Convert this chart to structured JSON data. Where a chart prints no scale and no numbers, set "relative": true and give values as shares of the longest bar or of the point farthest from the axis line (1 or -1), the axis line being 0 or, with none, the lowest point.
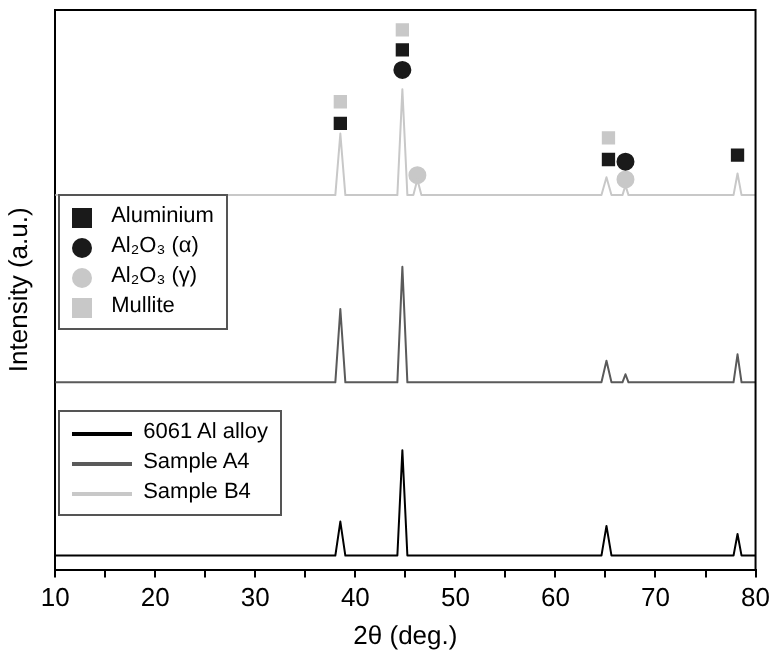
{
  "chart_data": {
    "type": "line",
    "relative": true,
    "xlabel": "2θ (deg.)",
    "ylabel": "Intensity (a.u.)",
    "xlim": [
      10,
      80
    ],
    "xticks": [
      10,
      {
        "value": 15,
        "label": null
      },
      20,
      {
        "value": 25,
        "label": null
      },
      30,
      {
        "value": 35,
        "label": null
      },
      40,
      {
        "value": 45,
        "label": null
      },
      50,
      {
        "value": 55,
        "label": null
      },
      60,
      {
        "value": 65,
        "label": null
      },
      70,
      {
        "value": 75,
        "label": null
      },
      80
    ],
    "grid": false,
    "legend": "left",
    "marker": "none",
    "line_style": "solid",
    "series": [
      {
        "name": "6061 Al alloy",
        "color": "#000000",
        "x": [
          10,
          38,
          38.5,
          39,
          44.2,
          44.7,
          45.2,
          64.6,
          65.1,
          65.6,
          77.8,
          78.2,
          78.6,
          80
        ],
        "values": [
          0.026,
          0.026,
          0.089,
          0.026,
          0.026,
          0.221,
          0.026,
          0.026,
          0.081,
          0.026,
          0.026,
          0.066,
          0.026,
          0.026
        ]
      },
      {
        "name": "Sample A4",
        "color": "#5a5a5a",
        "x": [
          10,
          38,
          38.5,
          39,
          44.2,
          44.7,
          45.2,
          64.6,
          65.1,
          65.6,
          66.7,
          67,
          67.3,
          77.8,
          78.2,
          78.6,
          80
        ],
        "values": [
          0.347,
          0.347,
          0.483,
          0.347,
          0.347,
          0.561,
          0.347,
          0.347,
          0.387,
          0.347,
          0.347,
          0.362,
          0.347,
          0.347,
          0.399,
          0.347,
          0.347
        ]
      },
      {
        "name": "Sample B4",
        "color": "#c8c8c8",
        "x": [
          10,
          38,
          38.5,
          39,
          44.2,
          44.7,
          45.2,
          45.8,
          46.2,
          46.6,
          64.6,
          65.1,
          65.6,
          66.7,
          67,
          67.3,
          77.8,
          78.2,
          78.6,
          80
        ],
        "values": [
          0.694,
          0.694,
          0.808,
          0.694,
          0.694,
          0.89,
          0.694,
          0.694,
          0.723,
          0.694,
          0.694,
          0.727,
          0.694,
          0.694,
          0.712,
          0.694,
          0.694,
          0.734,
          0.694,
          0.694
        ]
      },
      {
        "name": "Aluminium",
        "type": "scatter",
        "marker": "square",
        "color": "#1a1a1a",
        "x": [
          38.5,
          44.7,
          65.3,
          78.2
        ],
        "values": [
          0.827,
          0.963,
          0.76,
          0.768
        ]
      },
      {
        "name": "Al₂O₃ (α)",
        "type": "scatter",
        "marker": "circle",
        "color": "#1a1a1a",
        "x": [
          44.7,
          67
        ],
        "values": [
          0.926,
          0.756
        ]
      },
      {
        "name": "Al₂O₃ (γ)",
        "type": "scatter",
        "marker": "circle",
        "color": "#c8c8c8",
        "x": [
          46.2,
          67
        ],
        "values": [
          0.731,
          0.723
        ]
      },
      {
        "name": "Mullite",
        "type": "scatter",
        "marker": "square",
        "color": "#c8c8c8",
        "x": [
          38.5,
          44.7,
          65.3
        ],
        "values": [
          0.867,
          1,
          0.8
        ]
      }
    ]
  }
}
